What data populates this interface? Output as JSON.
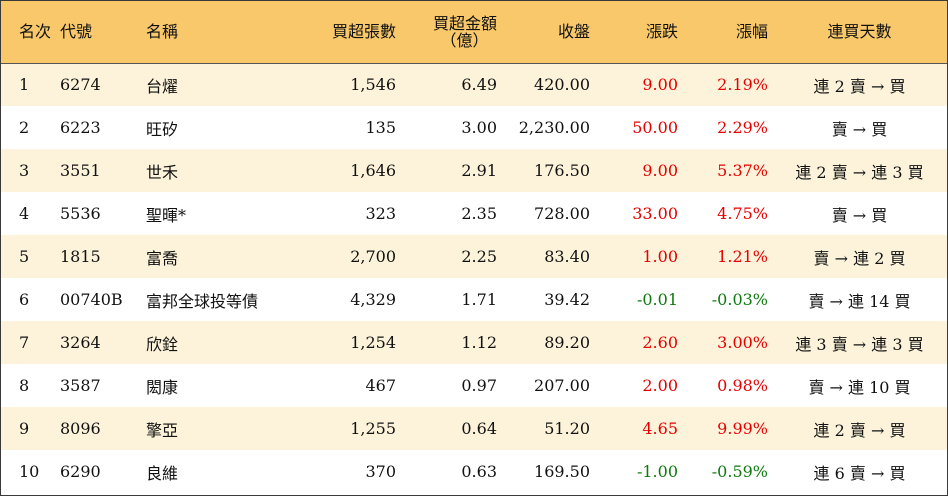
{
  "headers": {
    "rank": "名次",
    "code": "代號",
    "name": "名稱",
    "net_lots": "買超張數",
    "net_amount_line1": "買超金額",
    "net_amount_line2": "（億）",
    "close": "收盤",
    "change": "漲跌",
    "change_pct": "漲幅",
    "buy_days": "連買天數"
  },
  "colors": {
    "header_bg": "#f8c86a",
    "odd_row_bg": "#fcf3da",
    "even_row_bg": "#ffffff",
    "up": "#e60000",
    "down": "#0d7a0d"
  },
  "rows": [
    {
      "rank": "1",
      "code": "6274",
      "name": "台燿",
      "net_lots": "1,546",
      "net_amount": "6.49",
      "close": "420.00",
      "change": "9.00",
      "change_pct": "2.19%",
      "direction": "up",
      "buy_days": "連 2 賣 → 買"
    },
    {
      "rank": "2",
      "code": "6223",
      "name": "旺矽",
      "net_lots": "135",
      "net_amount": "3.00",
      "close": "2,230.00",
      "change": "50.00",
      "change_pct": "2.29%",
      "direction": "up",
      "buy_days": "賣 → 買"
    },
    {
      "rank": "3",
      "code": "3551",
      "name": "世禾",
      "net_lots": "1,646",
      "net_amount": "2.91",
      "close": "176.50",
      "change": "9.00",
      "change_pct": "5.37%",
      "direction": "up",
      "buy_days": "連 2 賣 → 連 3 買"
    },
    {
      "rank": "4",
      "code": "5536",
      "name": "聖暉*",
      "net_lots": "323",
      "net_amount": "2.35",
      "close": "728.00",
      "change": "33.00",
      "change_pct": "4.75%",
      "direction": "up",
      "buy_days": "賣 → 買"
    },
    {
      "rank": "5",
      "code": "1815",
      "name": "富喬",
      "net_lots": "2,700",
      "net_amount": "2.25",
      "close": "83.40",
      "change": "1.00",
      "change_pct": "1.21%",
      "direction": "up",
      "buy_days": "賣 → 連 2 買"
    },
    {
      "rank": "6",
      "code": "00740B",
      "name": "富邦全球投等債",
      "net_lots": "4,329",
      "net_amount": "1.71",
      "close": "39.42",
      "change": "-0.01",
      "change_pct": "-0.03%",
      "direction": "down",
      "buy_days": "賣 → 連 14 買"
    },
    {
      "rank": "7",
      "code": "3264",
      "name": "欣銓",
      "net_lots": "1,254",
      "net_amount": "1.12",
      "close": "89.20",
      "change": "2.60",
      "change_pct": "3.00%",
      "direction": "up",
      "buy_days": "連 3 賣 → 連 3 買"
    },
    {
      "rank": "8",
      "code": "3587",
      "name": "閎康",
      "net_lots": "467",
      "net_amount": "0.97",
      "close": "207.00",
      "change": "2.00",
      "change_pct": "0.98%",
      "direction": "up",
      "buy_days": "賣 → 連 10 買"
    },
    {
      "rank": "9",
      "code": "8096",
      "name": "擎亞",
      "net_lots": "1,255",
      "net_amount": "0.64",
      "close": "51.20",
      "change": "4.65",
      "change_pct": "9.99%",
      "direction": "up",
      "buy_days": "連 2 賣 → 買"
    },
    {
      "rank": "10",
      "code": "6290",
      "name": "良維",
      "net_lots": "370",
      "net_amount": "0.63",
      "close": "169.50",
      "change": "-1.00",
      "change_pct": "-0.59%",
      "direction": "down",
      "buy_days": "連 6 賣 → 買"
    }
  ]
}
